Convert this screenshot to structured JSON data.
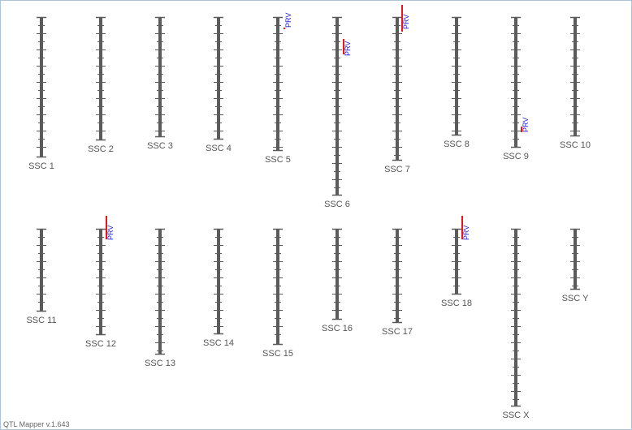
{
  "app": {
    "version_label": "QTL Mapper v.1.643"
  },
  "colors": {
    "chromosome": "#5b5b5b",
    "tick": "#5b5b5b",
    "qtl_bar": "#e8141e",
    "qtl_label": "#1a1ad6",
    "label": "#555555",
    "frame_border": "#a9c4dc"
  },
  "chromosomes": [
    {
      "name": "SSC 1",
      "row": 1,
      "qtls": []
    },
    {
      "name": "SSC 2",
      "row": 1,
      "qtls": []
    },
    {
      "name": "SSC 3",
      "row": 1,
      "qtls": []
    },
    {
      "name": "SSC 4",
      "row": 1,
      "qtls": []
    },
    {
      "name": "SSC 5",
      "row": 1,
      "qtls": [
        {
          "trait": "PRV"
        }
      ]
    },
    {
      "name": "SSC 6",
      "row": 1,
      "qtls": [
        {
          "trait": "PRV"
        }
      ]
    },
    {
      "name": "SSC 7",
      "row": 1,
      "qtls": [
        {
          "trait": "PRV"
        }
      ]
    },
    {
      "name": "SSC 8",
      "row": 1,
      "qtls": []
    },
    {
      "name": "SSC 9",
      "row": 1,
      "qtls": [
        {
          "trait": "PRV"
        }
      ]
    },
    {
      "name": "SSC 10",
      "row": 1,
      "qtls": []
    },
    {
      "name": "SSC 11",
      "row": 2,
      "qtls": []
    },
    {
      "name": "SSC 12",
      "row": 2,
      "qtls": [
        {
          "trait": "PRV"
        }
      ]
    },
    {
      "name": "SSC 13",
      "row": 2,
      "qtls": []
    },
    {
      "name": "SSC 14",
      "row": 2,
      "qtls": []
    },
    {
      "name": "SSC 15",
      "row": 2,
      "qtls": []
    },
    {
      "name": "SSC 16",
      "row": 2,
      "qtls": []
    },
    {
      "name": "SSC 17",
      "row": 2,
      "qtls": []
    },
    {
      "name": "SSC 18",
      "row": 2,
      "qtls": [
        {
          "trait": "PRV"
        }
      ]
    },
    {
      "name": "SSC X",
      "row": 2,
      "qtls": []
    },
    {
      "name": "SSC Y",
      "row": 2,
      "qtls": []
    }
  ]
}
